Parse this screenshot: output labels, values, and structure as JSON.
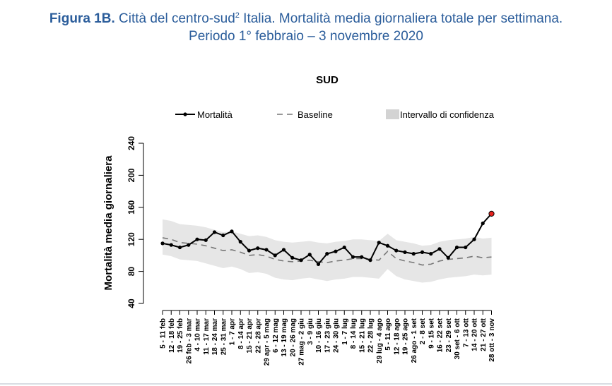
{
  "figure": {
    "label": "Figura 1B.",
    "title_line1_pre": "Città del centro-sud",
    "title_superscript": "2",
    "title_line1_post": " Italia. Mortalità media giornaliera totale per settimana.",
    "title_line2": "Periodo 1° febbraio – 3 novembre 2020"
  },
  "colors": {
    "caption": "#2b5d9b",
    "ci_band": "#e6e6e6",
    "legend_ci_swatch": "#d3d3d3",
    "mortality_line": "#000000",
    "baseline_line": "#777777",
    "last_point_fill": "#e8231f"
  },
  "chart_data": {
    "type": "line",
    "title": "SUD",
    "xlabel": "",
    "ylabel": "Mortalità media giornaliera",
    "ylim": [
      40,
      240
    ],
    "yticks": [
      40,
      80,
      120,
      160,
      200,
      240
    ],
    "grid": false,
    "legend_position": "top",
    "legend": [
      "Mortalità",
      "Baseline",
      "Intervallo di confidenza"
    ],
    "categories": [
      "5 - 11 feb",
      "12 - 18 feb",
      "19 - 25 feb",
      "26 feb - 3 mar",
      "4 - 10 mar",
      "11 - 17 mar",
      "18 - 24 mar",
      "25 - 31 mar",
      "1 - 7 apr",
      "8 - 14 apr",
      "15 - 21 apr",
      "22 - 28 apr",
      "29 apr - 5 mag",
      "6 - 12 mag",
      "13 - 19 mag",
      "20 - 26 mag",
      "27 mag - 2 giu",
      "3 - 9 giu",
      "10 - 16 giu",
      "17 - 23 giu",
      "24 - 30 giu",
      "1 - 7 lug",
      "8 - 14 lug",
      "15 - 21 lug",
      "22 - 28 lug",
      "29 lug - 4 ago",
      "5 - 11 ago",
      "12 - 18 ago",
      "19 - 25 ago",
      "26 ago - 1 set",
      "2 - 8 set",
      "9 - 15 set",
      "16 - 22 set",
      "23 - 29 set",
      "30 set - 6 ott",
      "7 - 13 ott",
      "14 - 20 ott",
      "21 - 27 ott",
      "28 ott - 3 nov"
    ],
    "series": [
      {
        "name": "Mortalità",
        "values": [
          115,
          113,
          110,
          113,
          120,
          119,
          129,
          125,
          130,
          117,
          106,
          109,
          107,
          100,
          107,
          97,
          94,
          101,
          89,
          102,
          105,
          110,
          98,
          98,
          94,
          116,
          112,
          106,
          104,
          102,
          104,
          102,
          108,
          97,
          110,
          110,
          120,
          140,
          152
        ]
      },
      {
        "name": "Baseline",
        "values": [
          122,
          120,
          116,
          115,
          114,
          112,
          109,
          106,
          107,
          104,
          100,
          101,
          99,
          95,
          93,
          92,
          93,
          94,
          92,
          91,
          93,
          94,
          96,
          96,
          95,
          94,
          105,
          96,
          93,
          91,
          88,
          89,
          93,
          95,
          96,
          97,
          99,
          97,
          98
        ]
      },
      {
        "name": "Intervallo di confidenza",
        "lower": [
          101,
          99,
          95,
          94,
          93,
          90,
          87,
          84,
          86,
          83,
          78,
          79,
          77,
          72,
          70,
          69,
          71,
          72,
          70,
          68,
          70,
          71,
          73,
          73,
          72,
          71,
          83,
          74,
          70,
          68,
          66,
          67,
          70,
          72,
          73,
          74,
          76,
          75,
          76
        ],
        "upper": [
          145,
          143,
          139,
          138,
          137,
          135,
          132,
          129,
          130,
          127,
          124,
          125,
          123,
          119,
          117,
          116,
          117,
          118,
          116,
          115,
          117,
          118,
          120,
          120,
          119,
          118,
          127,
          119,
          117,
          115,
          112,
          113,
          117,
          119,
          120,
          121,
          123,
          121,
          122
        ]
      }
    ]
  }
}
